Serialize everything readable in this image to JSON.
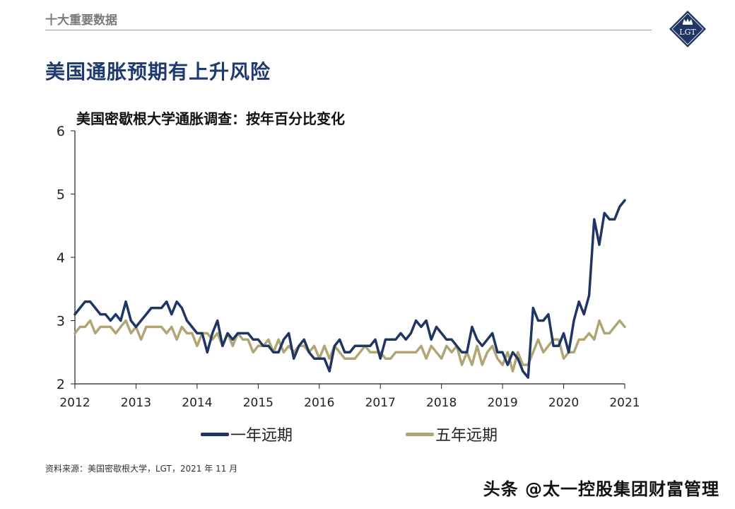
{
  "header": {
    "section_label": "十大重要数据",
    "title": "美国通胀预期有上升风险",
    "logo_text": "LGT"
  },
  "footer": {
    "source": "资料来源：美国密歇根大学，LGT，2021 年 11 月",
    "watermark": "头条 @太一控股集团财富管理"
  },
  "colors": {
    "series1": "#1f3564",
    "series2": "#b1a574",
    "title": "#1f3a6e",
    "logo": "#1f3564"
  },
  "chart_data": {
    "type": "line",
    "title": "美国密歇根大学通胀调查：按年百分比变化",
    "xlabel": "",
    "ylabel": "",
    "ylim": [
      2,
      6
    ],
    "yticks": [
      2,
      3,
      4,
      5,
      6
    ],
    "xlim": [
      2012.0,
      2021.0
    ],
    "xticks": [
      "2012",
      "2013",
      "2014",
      "2015",
      "2016",
      "2017",
      "2018",
      "2019",
      "2020",
      "2021"
    ],
    "grid": false,
    "legend_position": "bottom",
    "series": [
      {
        "name": "一年远期",
        "x": [
          2012.0,
          2012.083,
          2012.167,
          2012.25,
          2012.333,
          2012.417,
          2012.5,
          2012.583,
          2012.667,
          2012.75,
          2012.833,
          2012.917,
          2013.0,
          2013.083,
          2013.167,
          2013.25,
          2013.333,
          2013.417,
          2013.5,
          2013.583,
          2013.667,
          2013.75,
          2013.833,
          2013.917,
          2014.0,
          2014.083,
          2014.167,
          2014.25,
          2014.333,
          2014.417,
          2014.5,
          2014.583,
          2014.667,
          2014.75,
          2014.833,
          2014.917,
          2015.0,
          2015.083,
          2015.167,
          2015.25,
          2015.333,
          2015.417,
          2015.5,
          2015.583,
          2015.667,
          2015.75,
          2015.833,
          2015.917,
          2016.0,
          2016.083,
          2016.167,
          2016.25,
          2016.333,
          2016.417,
          2016.5,
          2016.583,
          2016.667,
          2016.75,
          2016.833,
          2016.917,
          2017.0,
          2017.083,
          2017.167,
          2017.25,
          2017.333,
          2017.417,
          2017.5,
          2017.583,
          2017.667,
          2017.75,
          2017.833,
          2017.917,
          2018.0,
          2018.083,
          2018.167,
          2018.25,
          2018.333,
          2018.417,
          2018.5,
          2018.583,
          2018.667,
          2018.75,
          2018.833,
          2018.917,
          2019.0,
          2019.083,
          2019.167,
          2019.25,
          2019.333,
          2019.417,
          2019.5,
          2019.583,
          2019.667,
          2019.75,
          2019.833,
          2019.917,
          2020.0,
          2020.083,
          2020.167,
          2020.25,
          2020.333,
          2020.417,
          2020.5,
          2020.583,
          2020.667,
          2020.75,
          2020.833,
          2020.917,
          2021.0
        ],
        "values": [
          3.1,
          3.2,
          3.3,
          3.3,
          3.2,
          3.1,
          3.1,
          3.0,
          3.1,
          3.0,
          3.3,
          3.0,
          2.9,
          3.0,
          3.1,
          3.2,
          3.2,
          3.2,
          3.3,
          3.1,
          3.3,
          3.2,
          3.0,
          2.9,
          2.8,
          2.8,
          2.5,
          2.8,
          3.0,
          2.6,
          2.8,
          2.7,
          2.8,
          2.8,
          2.8,
          2.7,
          2.7,
          2.6,
          2.6,
          2.5,
          2.5,
          2.7,
          2.8,
          2.4,
          2.6,
          2.7,
          2.5,
          2.4,
          2.4,
          2.4,
          2.2,
          2.6,
          2.7,
          2.5,
          2.5,
          2.6,
          2.6,
          2.6,
          2.6,
          2.7,
          2.4,
          2.7,
          2.7,
          2.7,
          2.8,
          2.7,
          2.8,
          3.0,
          2.9,
          3.0,
          2.7,
          2.9,
          2.8,
          2.7,
          2.7,
          2.6,
          2.5,
          2.5,
          2.9,
          2.7,
          2.6,
          2.7,
          2.8,
          2.5,
          2.5,
          2.3,
          2.5,
          2.4,
          2.2,
          2.1,
          3.2,
          3.0,
          3.0,
          3.1,
          2.6,
          2.6,
          2.8,
          2.5,
          3.0,
          3.3,
          3.1,
          3.4,
          4.6,
          4.2,
          4.7,
          4.6,
          4.6,
          4.8,
          4.9
        ]
      },
      {
        "name": "五年远期",
        "x": [
          2012.0,
          2012.083,
          2012.167,
          2012.25,
          2012.333,
          2012.417,
          2012.5,
          2012.583,
          2012.667,
          2012.75,
          2012.833,
          2012.917,
          2013.0,
          2013.083,
          2013.167,
          2013.25,
          2013.333,
          2013.417,
          2013.5,
          2013.583,
          2013.667,
          2013.75,
          2013.833,
          2013.917,
          2014.0,
          2014.083,
          2014.167,
          2014.25,
          2014.333,
          2014.417,
          2014.5,
          2014.583,
          2014.667,
          2014.75,
          2014.833,
          2014.917,
          2015.0,
          2015.083,
          2015.167,
          2015.25,
          2015.333,
          2015.417,
          2015.5,
          2015.583,
          2015.667,
          2015.75,
          2015.833,
          2015.917,
          2016.0,
          2016.083,
          2016.167,
          2016.25,
          2016.333,
          2016.417,
          2016.5,
          2016.583,
          2016.667,
          2016.75,
          2016.833,
          2016.917,
          2017.0,
          2017.083,
          2017.167,
          2017.25,
          2017.333,
          2017.417,
          2017.5,
          2017.583,
          2017.667,
          2017.75,
          2017.833,
          2017.917,
          2018.0,
          2018.083,
          2018.167,
          2018.25,
          2018.333,
          2018.417,
          2018.5,
          2018.583,
          2018.667,
          2018.75,
          2018.833,
          2018.917,
          2019.0,
          2019.083,
          2019.167,
          2019.25,
          2019.333,
          2019.417,
          2019.5,
          2019.583,
          2019.667,
          2019.75,
          2019.833,
          2019.917,
          2020.0,
          2020.083,
          2020.167,
          2020.25,
          2020.333,
          2020.417,
          2020.5,
          2020.583,
          2020.667,
          2020.75,
          2020.833,
          2020.917,
          2021.0
        ],
        "values": [
          2.8,
          2.9,
          2.9,
          3.0,
          2.8,
          2.9,
          2.9,
          2.9,
          2.8,
          2.9,
          3.0,
          2.8,
          2.9,
          2.7,
          2.9,
          2.9,
          2.9,
          2.9,
          2.8,
          2.9,
          2.7,
          2.9,
          2.8,
          2.8,
          2.6,
          2.8,
          2.8,
          2.7,
          2.8,
          2.6,
          2.8,
          2.6,
          2.8,
          2.7,
          2.7,
          2.5,
          2.6,
          2.6,
          2.7,
          2.5,
          2.7,
          2.5,
          2.6,
          2.5,
          2.6,
          2.6,
          2.5,
          2.6,
          2.4,
          2.6,
          2.4,
          2.6,
          2.5,
          2.4,
          2.4,
          2.4,
          2.5,
          2.6,
          2.5,
          2.5,
          2.5,
          2.4,
          2.4,
          2.5,
          2.5,
          2.5,
          2.5,
          2.5,
          2.6,
          2.4,
          2.6,
          2.5,
          2.4,
          2.6,
          2.5,
          2.6,
          2.3,
          2.5,
          2.3,
          2.6,
          2.3,
          2.5,
          2.6,
          2.4,
          2.3,
          2.5,
          2.2,
          2.5,
          2.3,
          2.3,
          2.5,
          2.7,
          2.5,
          2.6,
          2.7,
          2.7,
          2.4,
          2.5,
          2.5,
          2.7,
          2.7,
          2.8,
          2.7,
          3.0,
          2.8,
          2.8,
          2.9,
          3.0,
          2.9
        ]
      }
    ]
  }
}
